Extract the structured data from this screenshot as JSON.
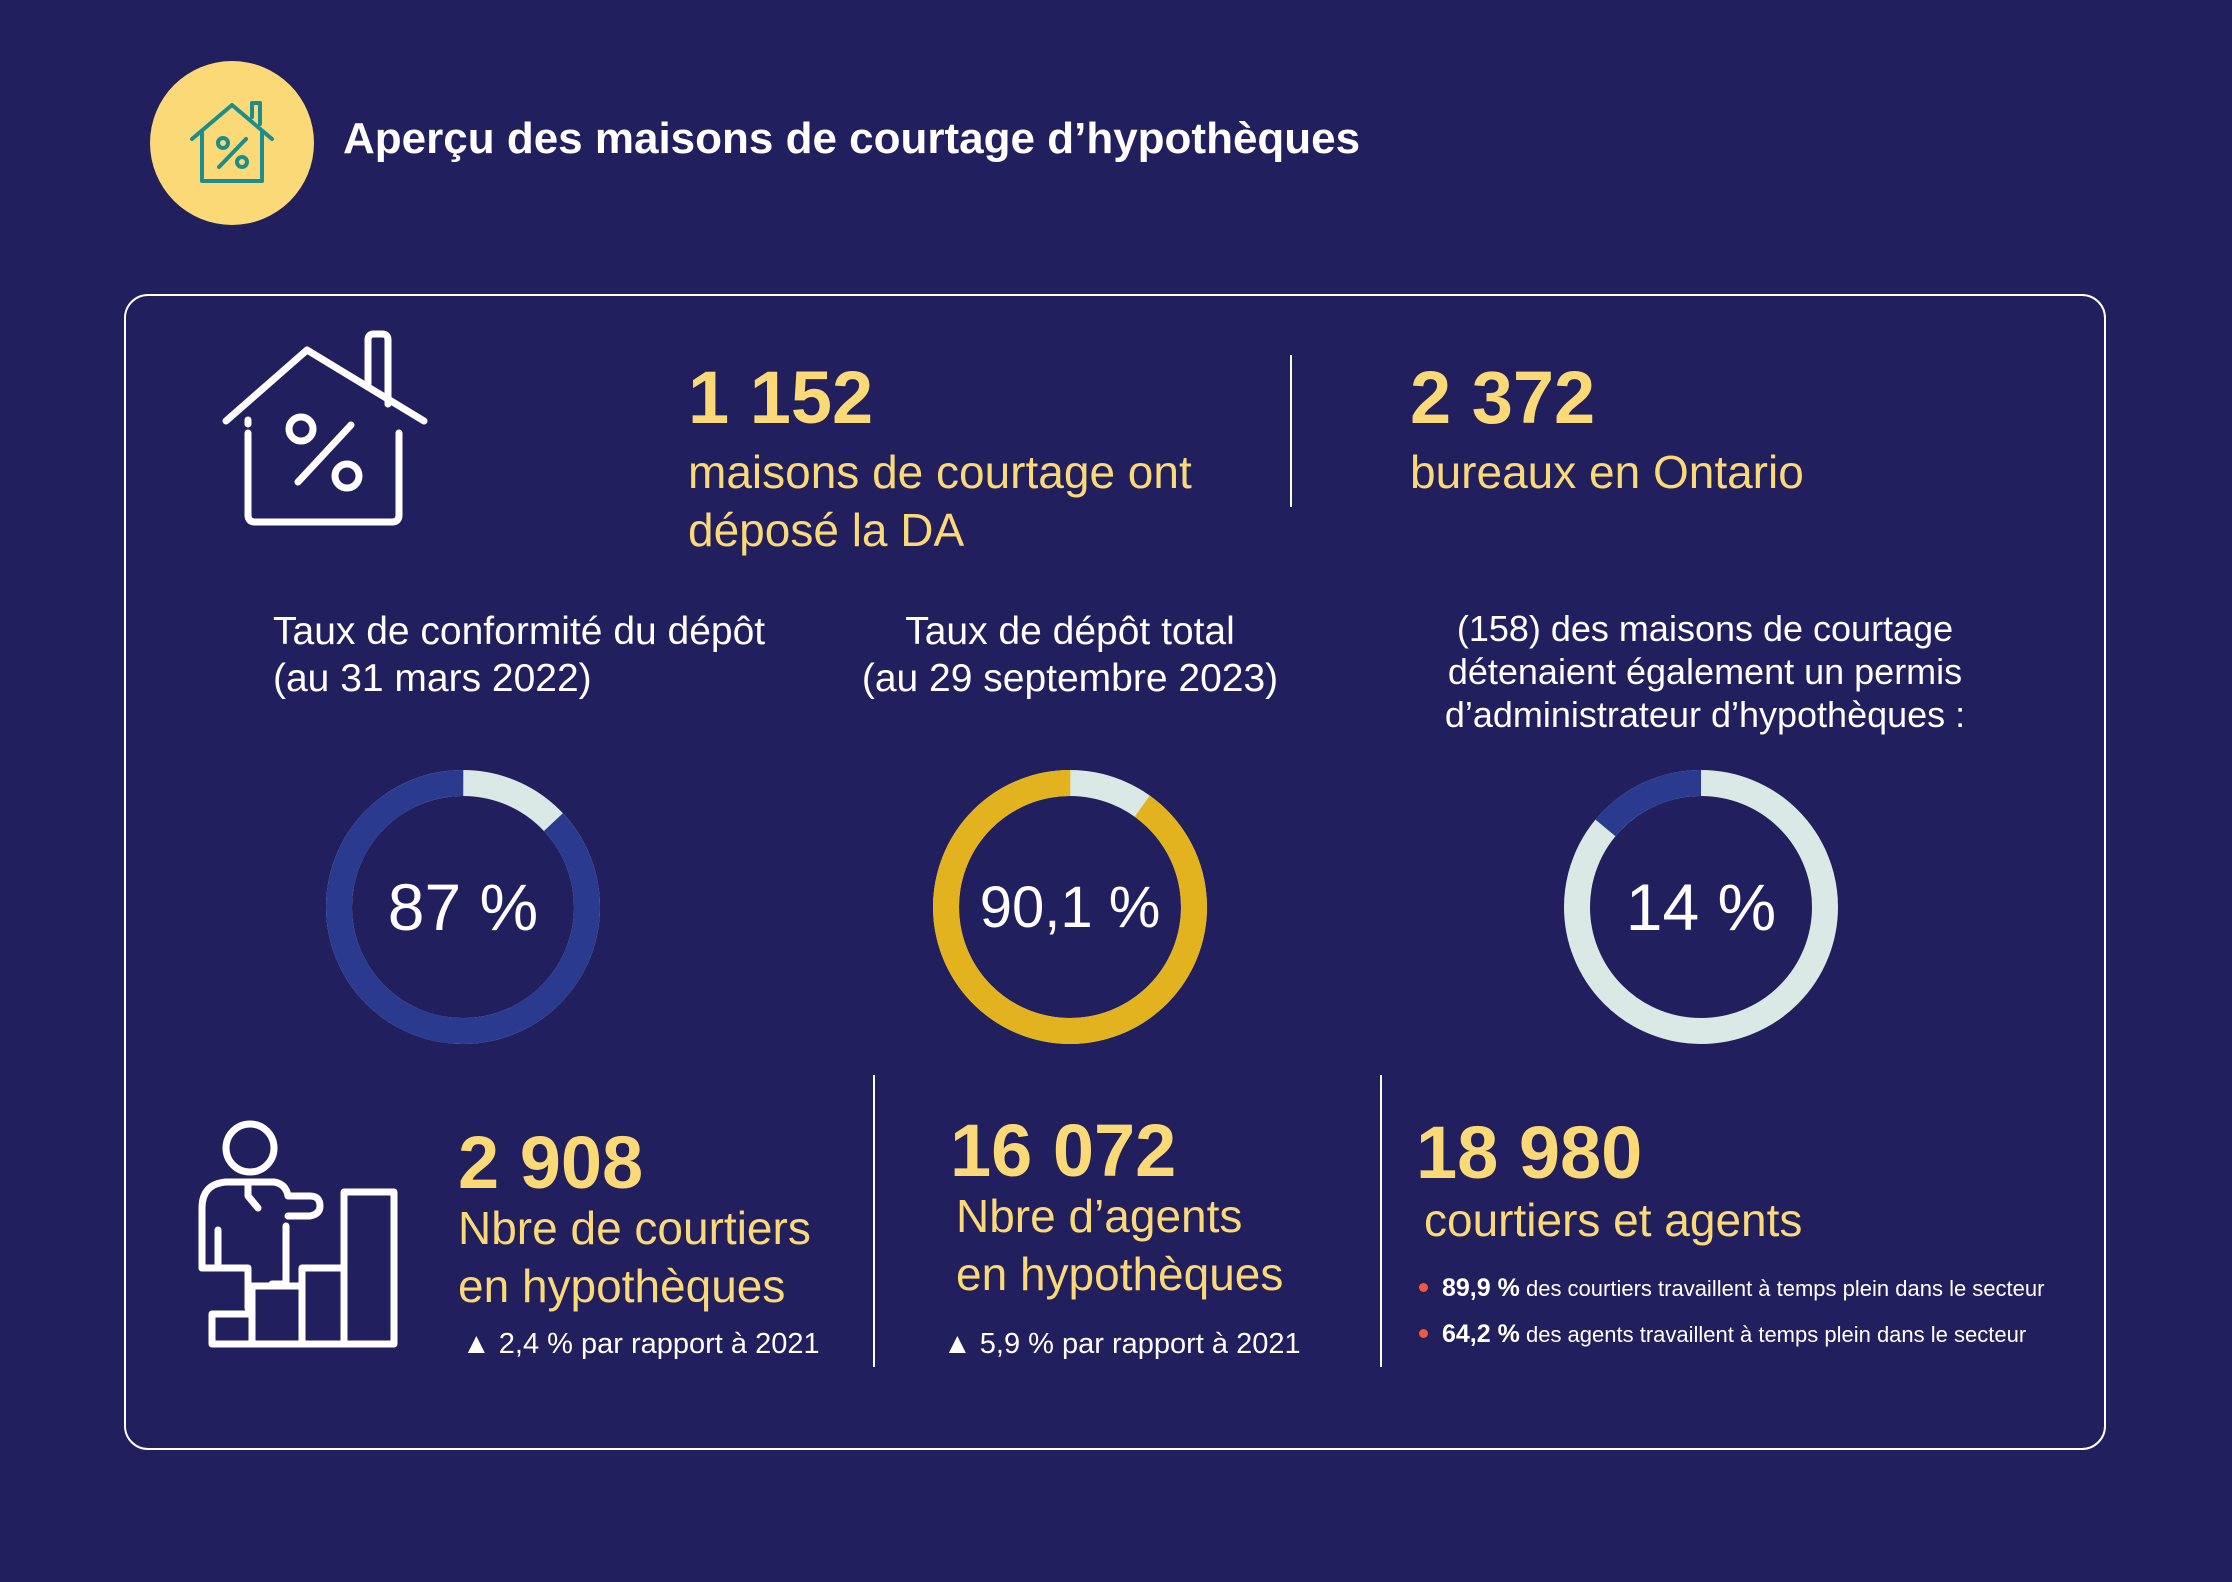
{
  "header": {
    "title": "Aperçu des maisons de courtage d’hypothèques",
    "badge_icon": "house-percent-icon"
  },
  "colors": {
    "background": "#221f5e",
    "accent_yellow": "#fbd976",
    "donut_blue": "#2a3a8f",
    "donut_gold": "#e2b21f",
    "donut_light": "#dbe9e6",
    "bullet_red": "#f05a3a"
  },
  "stats_top": {
    "filed": {
      "value": "1 152",
      "line1": "maisons de courtage ont",
      "line2": "déposé la DA"
    },
    "offices": {
      "value": "2 372",
      "line1": "bureaux en Ontario"
    }
  },
  "donuts": [
    {
      "label_line1": "Taux de conformité du dépôt",
      "label_line2": "(au 31 mars 2022)",
      "value_text": "87 %",
      "value": 87
    },
    {
      "label_line1": "Taux de dépôt total",
      "label_line2": "(au 29 septembre 2023)",
      "value_text": "90,1 %",
      "value": 90.1
    },
    {
      "label_line1": "(158) des maisons de courtage",
      "label_line2": "détenaient également un permis",
      "label_line3": "d’administrateur d’hypothèques :",
      "value_text": "14 %",
      "value": 14
    }
  ],
  "stats_bottom": {
    "brokers": {
      "value": "2 908",
      "line1": "Nbre de courtiers",
      "line2": "en hypothèques",
      "change": "▲ 2,4 % par rapport à 2021"
    },
    "agents": {
      "value": "16 072",
      "line1": "Nbre d’agents",
      "line2": "en hypothèques",
      "change": "▲ 5,9 % par rapport à 2021"
    },
    "total": {
      "value": "18 980",
      "line1": "courtiers et agents",
      "bullets": [
        {
          "pct": "89,9 %",
          "text": "des courtiers travaillent à temps plein dans le secteur"
        },
        {
          "pct": "64,2 %",
          "text": "des agents travaillent à temps plein dans le secteur"
        }
      ]
    }
  }
}
